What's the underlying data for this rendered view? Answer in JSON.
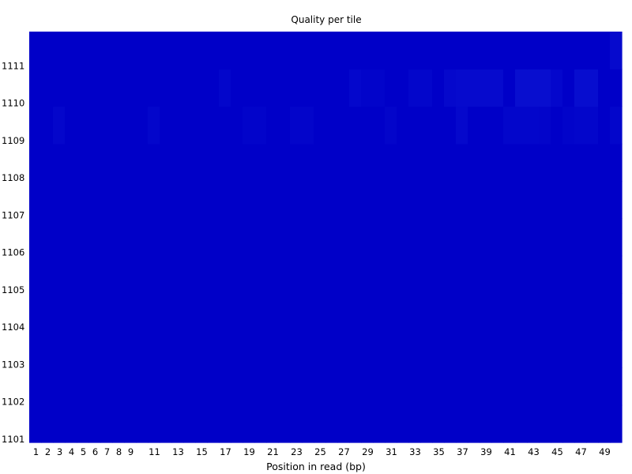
{
  "chart_data": {
    "type": "heatmap",
    "title": "Quality per tile",
    "xlabel": "Position in read (bp)",
    "ylabel": "",
    "x_tick_labels": [
      "1",
      "2",
      "3",
      "4",
      "5",
      "6",
      "7",
      "8",
      "9",
      "11",
      "13",
      "15",
      "17",
      "19",
      "21",
      "23",
      "25",
      "27",
      "29",
      "31",
      "33",
      "35",
      "37",
      "39",
      "41",
      "43",
      "45",
      "47",
      "49"
    ],
    "y_tick_labels": [
      "1101",
      "1102",
      "1103",
      "1104",
      "1105",
      "1106",
      "1107",
      "1108",
      "1109",
      "1110",
      "1111"
    ],
    "x_positions": [
      1,
      2,
      3,
      4,
      5,
      6,
      7,
      8,
      9,
      10,
      11,
      12,
      13,
      14,
      15,
      16,
      17,
      18,
      19,
      20,
      21,
      22,
      23,
      24,
      25,
      26,
      27,
      28,
      29,
      30,
      31,
      32,
      33,
      34,
      35,
      36,
      37,
      38,
      39,
      40,
      41,
      42,
      43,
      44,
      45,
      46,
      47,
      48,
      49,
      50
    ],
    "tiles": [
      1101,
      1102,
      1103,
      1104,
      1105,
      1106,
      1107,
      1108,
      1109,
      1110,
      1111
    ],
    "color_scale": {
      "base": "#0000c8",
      "light": "#1a2ee0"
    },
    "deviations": [
      {
        "tile": 1111,
        "values": [
          [
            50,
            0.22
          ]
        ]
      },
      {
        "tile": 1110,
        "values": [
          [
            17,
            0.12
          ],
          [
            28,
            0.15
          ],
          [
            29,
            0.08
          ],
          [
            30,
            0.08
          ],
          [
            33,
            0.12
          ],
          [
            34,
            0.12
          ],
          [
            36,
            0.18
          ],
          [
            37,
            0.22
          ],
          [
            38,
            0.22
          ],
          [
            39,
            0.22
          ],
          [
            40,
            0.22
          ],
          [
            42,
            0.3
          ],
          [
            43,
            0.3
          ],
          [
            44,
            0.3
          ],
          [
            45,
            0.15
          ],
          [
            47,
            0.28
          ],
          [
            48,
            0.28
          ]
        ]
      },
      {
        "tile": 1109,
        "values": [
          [
            3,
            0.14
          ],
          [
            11,
            0.12
          ],
          [
            19,
            0.08
          ],
          [
            20,
            0.08
          ],
          [
            23,
            0.1
          ],
          [
            24,
            0.1
          ],
          [
            31,
            0.1
          ],
          [
            37,
            0.18
          ],
          [
            41,
            0.12
          ],
          [
            42,
            0.12
          ],
          [
            43,
            0.12
          ],
          [
            44,
            0.1
          ],
          [
            46,
            0.08
          ],
          [
            47,
            0.12
          ],
          [
            48,
            0.12
          ],
          [
            50,
            0.12
          ]
        ]
      }
    ]
  }
}
